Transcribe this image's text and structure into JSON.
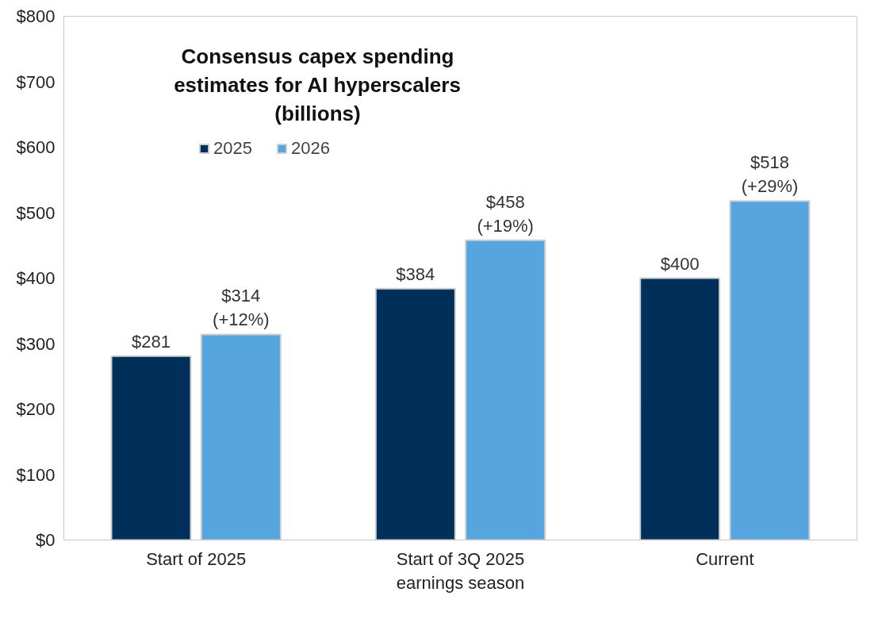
{
  "chart_data": {
    "type": "bar",
    "title": "Consensus capex spending estimates for AI hyperscalers (billions)",
    "categories": [
      "Start of 2025",
      "Start of 3Q 2025 earnings season",
      "Current"
    ],
    "series": [
      {
        "name": "2025",
        "color": "#00305a",
        "values": [
          281,
          384,
          400
        ],
        "value_labels": [
          "$281",
          "$384",
          "$400"
        ]
      },
      {
        "name": "2026",
        "color": "#56a5de",
        "values": [
          314,
          458,
          518
        ],
        "value_labels": [
          "$314\n(+12%)",
          "$458\n(+19%)",
          "$518\n(+29%)"
        ]
      }
    ],
    "ylim": [
      0,
      800
    ],
    "yticks": [
      {
        "value": 0,
        "label": "$0"
      },
      {
        "value": 100,
        "label": "$100"
      },
      {
        "value": 200,
        "label": "$200"
      },
      {
        "value": 300,
        "label": "$300"
      },
      {
        "value": 400,
        "label": "$400"
      },
      {
        "value": 500,
        "label": "$500"
      },
      {
        "value": 600,
        "label": "$600"
      },
      {
        "value": 700,
        "label": "$700"
      },
      {
        "value": 800,
        "label": "$800"
      }
    ],
    "grid": false,
    "legend": "top left"
  }
}
